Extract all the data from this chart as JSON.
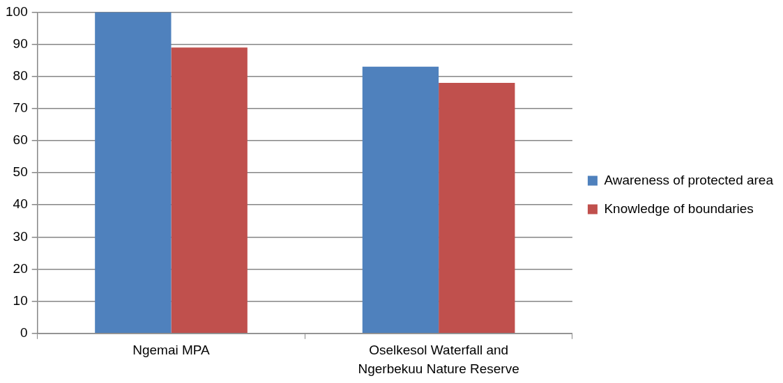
{
  "chart_data": {
    "type": "bar",
    "categories": [
      "Ngemai MPA",
      "Oselkesol Waterfall and Ngerbekuu Nature Reserve"
    ],
    "series": [
      {
        "name": "Awareness of protected area",
        "color": "#4f81bd",
        "values": [
          100,
          83
        ]
      },
      {
        "name": "Knowledge of boundaries",
        "color": "#c0504d",
        "values": [
          89,
          78
        ]
      }
    ],
    "ylim": [
      0,
      100
    ],
    "yticks": [
      0,
      10,
      20,
      30,
      40,
      50,
      60,
      70,
      80,
      90,
      100
    ],
    "grid": "y",
    "legend": "right"
  }
}
